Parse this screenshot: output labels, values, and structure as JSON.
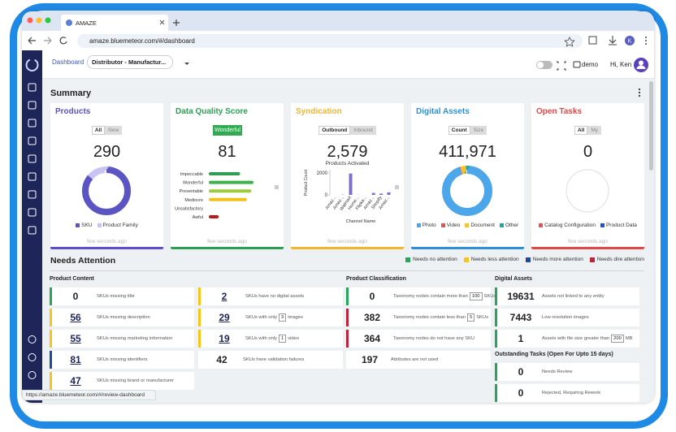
{
  "browser": {
    "tab_title": "AMAZE",
    "url": "amaze.bluemeteor.com/#/dashboard",
    "profile_initial": "K",
    "status_url": "https://amaze.bluemeteor.com/#/review-dashboard"
  },
  "header": {
    "breadcrumb": "Dashboard",
    "selector": "Distributor - Manufactur...",
    "workspace": "demo",
    "greeting": "Hi, Ken"
  },
  "summary": {
    "title": "Summary",
    "cards": [
      {
        "title": "Products",
        "color": "#5b4fcf",
        "toggle": [
          "All",
          "New"
        ],
        "active": 0,
        "value": 290,
        "chart": {
          "type": "donut",
          "series": [
            {
              "name": "SKU",
              "color": "#5b55c4",
              "value": 86
            },
            {
              "name": "Product Family",
              "color": "#c9c3f2",
              "value": 14
            }
          ]
        },
        "footer": "few seconds ago"
      },
      {
        "title": "Data Quality Score",
        "color": "#2e9e55",
        "badge": "Wonderful",
        "value": 81,
        "chart": {
          "type": "hbar",
          "categories": [
            "Impeccable",
            "Wonderful",
            "Presentable",
            "Mediocre",
            "Unsatisfactory",
            "Awful"
          ],
          "values": [
            70,
            100,
            95,
            85,
            0,
            22
          ],
          "colors": [
            "#2e9e55",
            "#3cb34a",
            "#9ccc3c",
            "#f2c21b",
            "#e08a2b",
            "#b71c1c"
          ]
        },
        "footer": "few seconds ago"
      },
      {
        "title": "Syndication",
        "color": "#f2b62b",
        "toggle": [
          "Outbound",
          "Inbound"
        ],
        "active": 0,
        "value": "2,579",
        "subtitle": "Products Activated",
        "chart": {
          "type": "bar",
          "ylabel": "Product Count",
          "xlabel": "Channel Name",
          "categories": [
            "Amaz...",
            "Amaz...",
            "Walmart",
            "Home...",
            "Flipka...",
            "Amaz...",
            "Shopify",
            "Amaz..."
          ],
          "values": [
            0,
            20,
            1950,
            10,
            0,
            180,
            120,
            230
          ],
          "color": "#7e6fc9",
          "ylim": [
            0,
            2300
          ],
          "yticks": [
            0,
            2000
          ]
        },
        "footer": "few seconds ago"
      },
      {
        "title": "Digital Assets",
        "color": "#2d8fd8",
        "toggle": [
          "Count",
          "Size"
        ],
        "active": 0,
        "value": "411,971",
        "chart": {
          "type": "donut",
          "series": [
            {
              "name": "Photo",
              "color": "#4ba6ea",
              "value": 95
            },
            {
              "name": "Video",
              "color": "#e05555",
              "value": 0.4
            },
            {
              "name": "Document",
              "color": "#f4c430",
              "value": 3.6
            },
            {
              "name": "Other",
              "color": "#26a69a",
              "value": 1
            }
          ]
        },
        "footer": "few seconds ago"
      },
      {
        "title": "Open Tasks",
        "color": "#e04848",
        "toggle": [
          "All",
          "My"
        ],
        "active": 0,
        "value": 0,
        "chart": {
          "type": "donut",
          "series": [
            {
              "name": "Catalog Configuration",
              "color": "#e05555",
              "value": 0
            },
            {
              "name": "Product Data",
              "color": "#1e50d8",
              "value": 0
            }
          ]
        },
        "footer": "few seconds ago"
      }
    ]
  },
  "attention": {
    "title": "Needs Attention",
    "legend": [
      {
        "name": "Needs no attention",
        "color": "#27a55a"
      },
      {
        "name": "Needs less attention",
        "color": "#f5c518"
      },
      {
        "name": "Needs more attention",
        "color": "#23479c"
      },
      {
        "name": "Needs dire attention",
        "color": "#c0243a"
      }
    ],
    "groups": [
      {
        "title": "Product Content",
        "items": [
          {
            "count": 0,
            "text": "SKUs missing title",
            "color": "#27a55a"
          },
          {
            "count": 56,
            "text": "SKUs missing description",
            "color": "#f5c518",
            "link": true
          },
          {
            "count": 55,
            "text": "SKUs missing marketing information",
            "color": "#f5c518",
            "link": true
          },
          {
            "count": 81,
            "text": "SKUs missing identifiers",
            "color": "#23479c",
            "link": true
          },
          {
            "count": 47,
            "text": "SKUs missing brand or manufacturer",
            "color": "#f5c518",
            "link": true
          },
          {
            "count": 2,
            "text": "SKUs have no digital assets",
            "color": "#f5c518",
            "link": true
          },
          {
            "count": 29,
            "text": "SKUs with only",
            "box": 3,
            "text_after": "images",
            "color": "#f5c518",
            "link": true
          },
          {
            "count": 19,
            "text": "SKUs with only",
            "box": 1,
            "text_after": "video",
            "color": "#f5c518",
            "link": true
          },
          {
            "count": 42,
            "text": "SKUs have validation failures"
          }
        ]
      },
      {
        "title": "Product Classification",
        "items": [
          {
            "count": 0,
            "text": "Taxonomy nodes contain more than",
            "box": 100,
            "text_after": "SKUs",
            "color": "#27a55a"
          },
          {
            "count": 382,
            "text": "Taxonomy nodes contain less than",
            "box": 5,
            "text_after": "SKUs",
            "color": "#c0243a"
          },
          {
            "count": 364,
            "text": "Taxonomy nodes do not have any SKU",
            "color": "#c0243a"
          },
          {
            "count": 197,
            "text": "Attributes are not used"
          }
        ]
      },
      {
        "title": "Digital Assets",
        "items": [
          {
            "count": 19631,
            "text": "Assets not linked to any entity",
            "color": "#27a55a"
          },
          {
            "count": 7443,
            "text": "Low resolution images",
            "color": "#27a55a"
          },
          {
            "count": 1,
            "text": "Assets with file size greater than",
            "box": 200,
            "text_after": "MB",
            "color": "#27a55a"
          }
        ]
      },
      {
        "title": "Outstanding Tasks (Open For Upto 15 days)",
        "items": [
          {
            "count": 0,
            "text": "Needs Review",
            "color": "#27a55a"
          },
          {
            "count": 0,
            "text": "Rejected, Requiring Rework",
            "color": "#27a55a"
          }
        ]
      }
    ]
  }
}
